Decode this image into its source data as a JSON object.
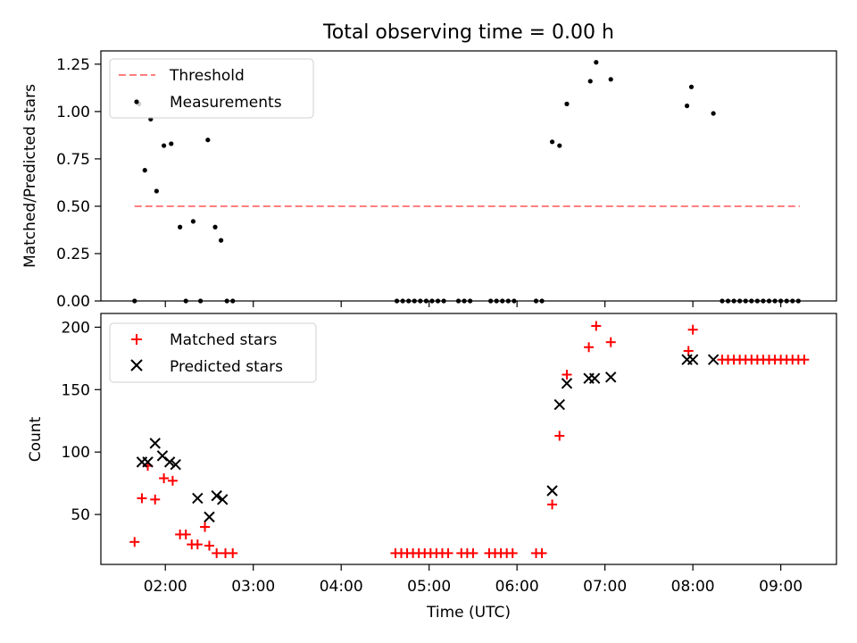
{
  "chart_data": [
    {
      "type": "scatter",
      "title": "Total observing time = 0.00 h",
      "ylabel": "Matched/Predicted stars",
      "ylim": [
        0,
        1.32
      ],
      "yticks": [
        "0.00",
        "0.25",
        "0.50",
        "0.75",
        "1.00",
        "1.25"
      ],
      "grid": false,
      "legend_position": "top-left",
      "series": [
        {
          "name": "Threshold",
          "kind": "dashed-line",
          "color": "#ff7f7f",
          "x": [
            "01:39",
            "09:13"
          ],
          "y": [
            0.5,
            0.5
          ]
        },
        {
          "name": "Measurements",
          "kind": "points",
          "color": "#000000",
          "x": [
            "01:39",
            "01:42",
            "01:46",
            "01:50",
            "01:54",
            "01:59",
            "02:04",
            "02:10",
            "02:14",
            "02:19",
            "02:24",
            "02:29",
            "02:34",
            "02:38",
            "02:42",
            "02:46",
            "04:38",
            "04:42",
            "04:46",
            "04:50",
            "04:54",
            "04:58",
            "05:02",
            "05:06",
            "05:10",
            "05:20",
            "05:24",
            "05:28",
            "05:42",
            "05:46",
            "05:50",
            "05:54",
            "05:58",
            "06:13",
            "06:17",
            "06:24",
            "06:29",
            "06:34",
            "06:50",
            "06:54",
            "07:04",
            "07:56",
            "07:59",
            "08:14",
            "08:20",
            "08:24",
            "08:28",
            "08:32",
            "08:36",
            "08:40",
            "08:44",
            "08:48",
            "08:52",
            "08:56",
            "09:00",
            "09:04",
            "09:08",
            "09:12"
          ],
          "y": [
            0.0,
            1.04,
            0.69,
            0.96,
            0.58,
            0.82,
            0.83,
            0.39,
            0.0,
            0.42,
            0.0,
            0.85,
            0.39,
            0.32,
            0.0,
            0.0,
            0.0,
            0.0,
            0.0,
            0.0,
            0.0,
            0.0,
            0.0,
            0.0,
            0.0,
            0.0,
            0.0,
            0.0,
            0.0,
            0.0,
            0.0,
            0.0,
            0.0,
            0.0,
            0.0,
            0.84,
            0.82,
            1.04,
            1.16,
            1.26,
            1.17,
            1.03,
            1.13,
            0.99,
            0.0,
            0.0,
            0.0,
            0.0,
            0.0,
            0.0,
            0.0,
            0.0,
            0.0,
            0.0,
            0.0,
            0.0,
            0.0,
            0.0
          ]
        }
      ]
    },
    {
      "type": "scatter",
      "xlabel": "Time (UTC)",
      "ylabel": "Count",
      "xlim": [
        "01:16",
        "09:38"
      ],
      "ylim": [
        10,
        211
      ],
      "xticks": [
        "02:00",
        "03:00",
        "04:00",
        "05:00",
        "06:00",
        "07:00",
        "08:00",
        "09:00"
      ],
      "yticks": [
        "50",
        "100",
        "150",
        "200"
      ],
      "grid": false,
      "legend_position": "top-left",
      "series": [
        {
          "name": "Matched stars",
          "marker": "plus",
          "color": "#ff0000",
          "x": [
            "01:39",
            "01:44",
            "01:48",
            "01:53",
            "01:59",
            "02:05",
            "02:10",
            "02:14",
            "02:18",
            "02:22",
            "02:27",
            "02:30",
            "02:35",
            "02:41",
            "02:46",
            "04:37",
            "04:41",
            "04:45",
            "04:49",
            "04:53",
            "04:57",
            "05:01",
            "05:05",
            "05:09",
            "05:13",
            "05:22",
            "05:26",
            "05:30",
            "05:41",
            "05:45",
            "05:49",
            "05:53",
            "05:57",
            "06:13",
            "06:17",
            "06:24",
            "06:29",
            "06:34",
            "06:49",
            "06:54",
            "07:04",
            "07:57",
            "08:00",
            "08:20",
            "08:24",
            "08:28",
            "08:32",
            "08:36",
            "08:40",
            "08:44",
            "08:48",
            "08:52",
            "08:56",
            "09:00",
            "09:04",
            "09:08",
            "09:12",
            "09:16"
          ],
          "y": [
            28,
            63,
            89,
            62,
            79,
            77,
            34,
            34,
            26,
            26,
            40,
            25,
            19,
            19,
            19,
            19,
            19,
            19,
            19,
            19,
            19,
            19,
            19,
            19,
            19,
            19,
            19,
            19,
            19,
            19,
            19,
            19,
            19,
            19,
            19,
            58,
            113,
            162,
            184,
            201,
            188,
            181,
            198,
            174,
            174,
            174,
            174,
            174,
            174,
            174,
            174,
            174,
            174,
            174,
            174,
            174,
            174,
            174
          ]
        },
        {
          "name": "Predicted stars",
          "marker": "x",
          "color": "#000000",
          "x": [
            "01:44",
            "01:48",
            "01:53",
            "01:58",
            "02:03",
            "02:07",
            "02:22",
            "02:30",
            "02:35",
            "02:39",
            "06:24",
            "06:29",
            "06:34",
            "06:49",
            "06:53",
            "07:04",
            "07:56",
            "08:00",
            "08:14"
          ],
          "y": [
            92,
            92,
            107,
            97,
            92,
            90,
            63,
            48,
            65,
            62,
            69,
            138,
            155,
            159,
            159,
            160,
            174,
            174,
            174
          ]
        }
      ]
    }
  ]
}
